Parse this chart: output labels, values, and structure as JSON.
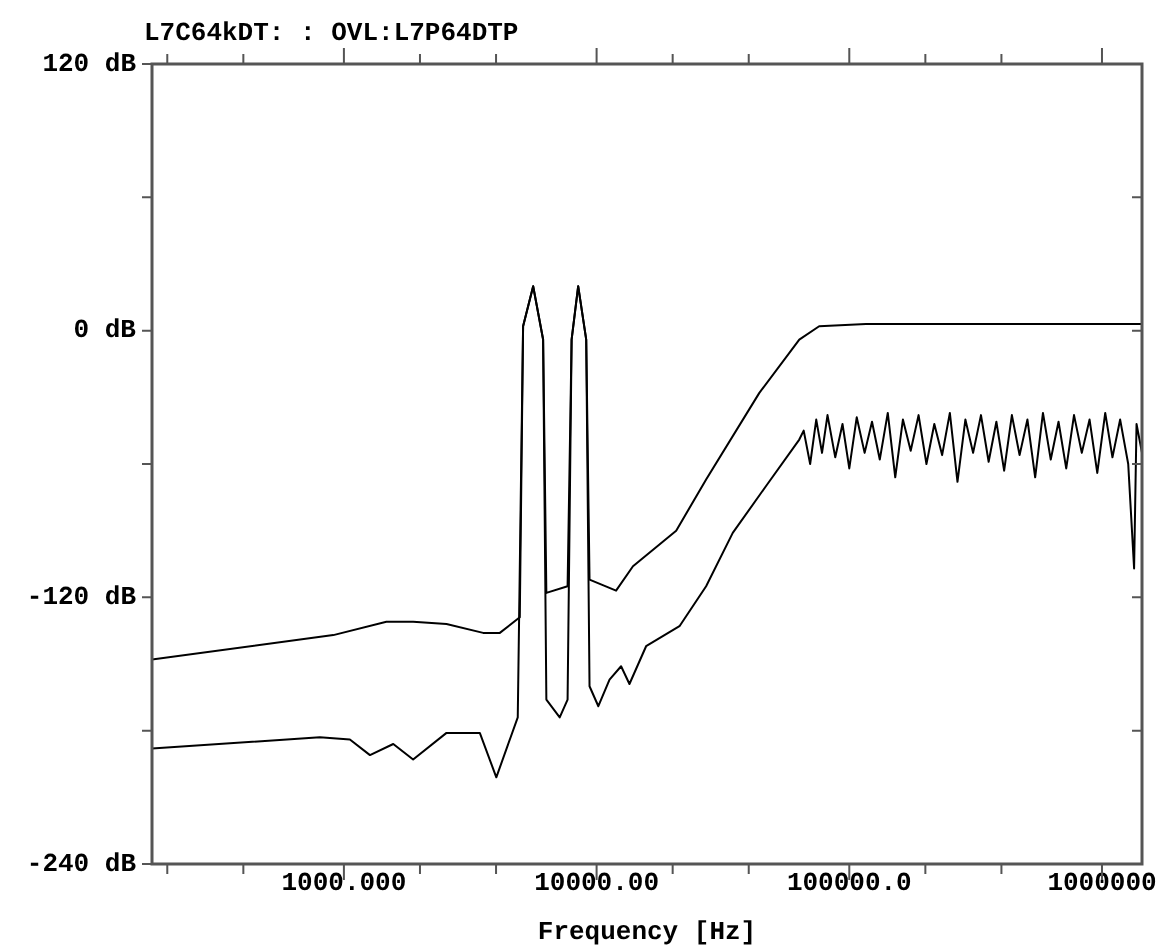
{
  "chart_data": {
    "type": "line",
    "title": "L7C64kDT: : OVL:L7P64DTP",
    "xlabel": "Frequency [Hz]",
    "log": "x",
    "marker": "none",
    "line_style": "solid",
    "legend": false,
    "xlim": [
      174,
      1440000
    ],
    "xticks": [
      {
        "value": 200,
        "label": null
      },
      {
        "value": 400,
        "label": null
      },
      {
        "value": 1000,
        "label": "1000.000"
      },
      {
        "value": 2000,
        "label": null
      },
      {
        "value": 4000,
        "label": null
      },
      {
        "value": 10000,
        "label": "10000.00"
      },
      {
        "value": 20000,
        "label": null
      },
      {
        "value": 40000,
        "label": null
      },
      {
        "value": 100000,
        "label": "100000.0"
      },
      {
        "value": 200000,
        "label": null
      },
      {
        "value": 400000,
        "label": null
      },
      {
        "value": 1000000,
        "label": "1000000"
      }
    ],
    "ylim": [
      -240,
      120
    ],
    "yticks": [
      {
        "value": -240,
        "label": "-240 dB"
      },
      {
        "value": -180,
        "label": null
      },
      {
        "value": -120,
        "label": "-120 dB"
      },
      {
        "value": -60,
        "label": null
      },
      {
        "value": 0,
        "label": "0 dB"
      },
      {
        "value": 60,
        "label": null
      },
      {
        "value": 120,
        "label": "120 dB"
      }
    ],
    "series": [
      {
        "color": "#000000",
        "x": [
          174,
          908,
          1473,
          1879,
          2547,
          3556,
          4140,
          4966,
          5118,
          5610,
          6142,
          6327,
          7677,
          7964,
          8455,
          9097,
          9376,
          11942,
          13930,
          20650,
          27130,
          44060,
          63400,
          76000,
          116400,
          1440000
        ],
        "values": [
          -148,
          -137,
          -131,
          -131,
          -132,
          -136,
          -136,
          -129,
          2,
          20,
          -4,
          -118,
          -115,
          -4,
          20,
          -4,
          -112,
          -117,
          -106,
          -90,
          -67,
          -28,
          -4,
          2,
          3,
          3
        ]
      },
      {
        "color": "#000000",
        "x": [
          174,
          803,
          1056,
          1268,
          1568,
          1879,
          2547,
          3450,
          4010,
          4875,
          5118,
          5610,
          6142,
          6327,
          7145,
          7677,
          7964,
          8455,
          9097,
          9376,
          10160,
          11250,
          12500,
          13490,
          15700,
          21280,
          27130,
          34580,
          46770,
          63400,
          66000,
          70000,
          74000,
          78000,
          82000,
          88000,
          94000,
          100000,
          107000,
          115000,
          123000,
          132000,
          142000,
          152000,
          163000,
          175000,
          188000,
          202000,
          217000,
          233000,
          250000,
          268000,
          288000,
          309000,
          332000,
          356000,
          382000,
          410000,
          440000,
          472000,
          507000,
          544000,
          584000,
          627000,
          673000,
          722000,
          775000,
          832000,
          893000,
          958000,
          1030000,
          1100000,
          1180000,
          1270000,
          1340000,
          1370000,
          1440000
        ],
        "values": [
          -188,
          -183,
          -184,
          -191,
          -186,
          -193,
          -181,
          -181,
          -201,
          -174,
          2,
          20,
          -4,
          -166,
          -174,
          -166,
          -4,
          20,
          -4,
          -160,
          -169,
          -157,
          -151,
          -159,
          -142,
          -133,
          -115,
          -91,
          -70,
          -49,
          -45,
          -60,
          -40,
          -55,
          -38,
          -57,
          -42,
          -62,
          -39,
          -55,
          -41,
          -58,
          -37,
          -66,
          -40,
          -54,
          -38,
          -60,
          -42,
          -56,
          -37,
          -68,
          -40,
          -55,
          -38,
          -59,
          -41,
          -63,
          -38,
          -56,
          -40,
          -66,
          -37,
          -58,
          -41,
          -62,
          -38,
          -55,
          -40,
          -64,
          -37,
          -57,
          -40,
          -60,
          -107,
          -42,
          -55
        ]
      }
    ]
  }
}
